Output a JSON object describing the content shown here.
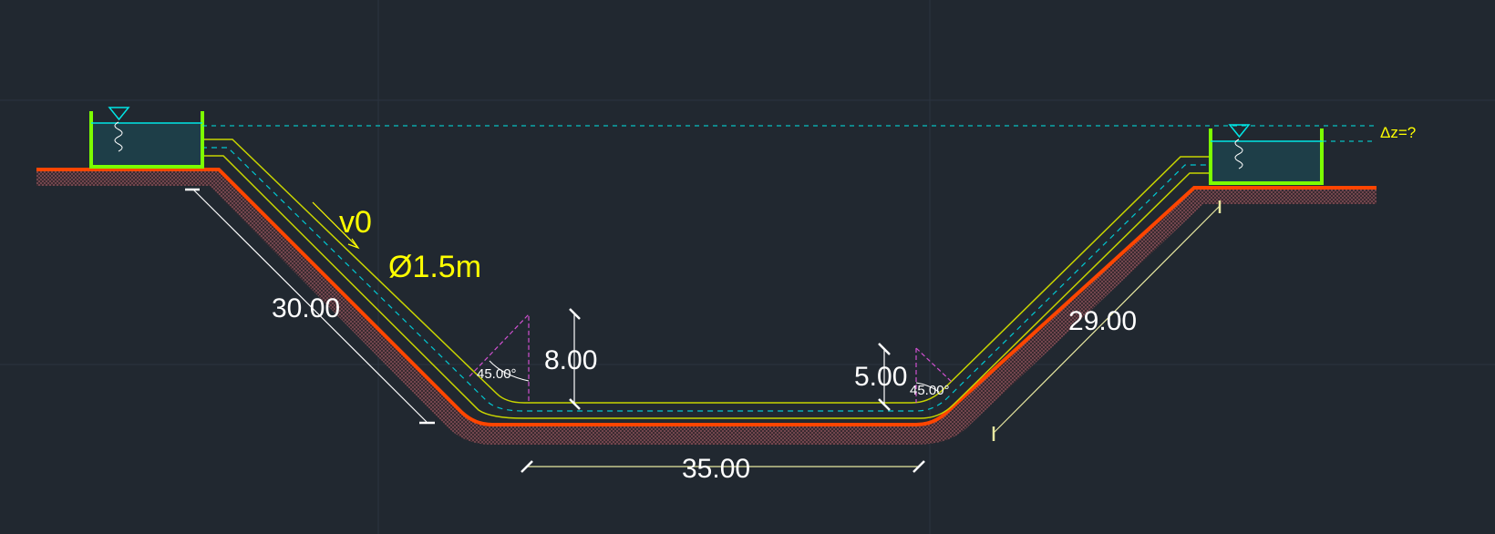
{
  "drawing": {
    "velocity_label": "v0",
    "diameter_label": "Ø1.5m",
    "delta_z_label": "Δz=?",
    "dims": {
      "left_slope": "30.00",
      "right_slope": "29.00",
      "bottom": "35.00",
      "left_drop": "8.00",
      "right_drop": "5.00"
    },
    "angles": {
      "left": "45.00°",
      "right": "45.00°"
    }
  },
  "colors": {
    "background": "#212830",
    "grid": "#2c3440",
    "ground_line": "#ff4500",
    "ground_hatch": "#8a4a52",
    "pipe_outline": "#c8d400",
    "pipe_center": "#00c8d2",
    "tank_wall": "#7cff00",
    "water_fill": "#1e3e48",
    "water_level": "#00e6e6",
    "dimension_line": "#ffffff",
    "angle_mark": "#d050d0",
    "annotation": "#ffff00"
  }
}
